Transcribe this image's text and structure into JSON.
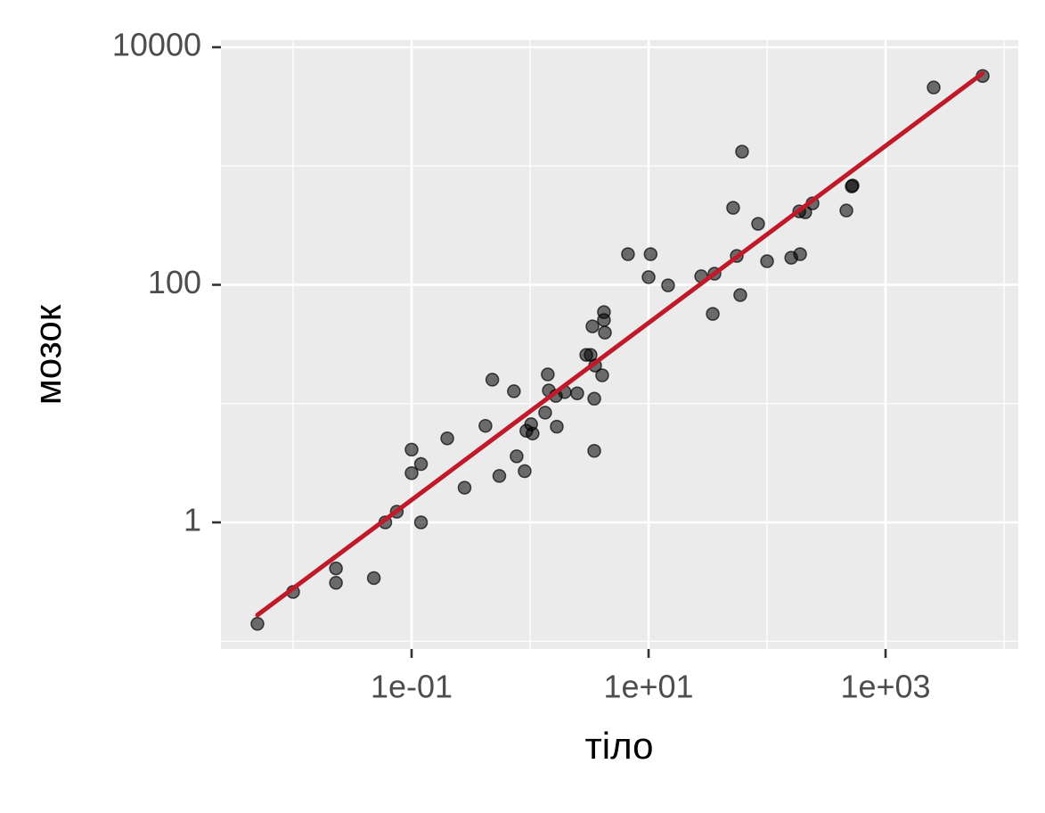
{
  "chart_data": {
    "type": "scatter",
    "xlabel": "тіло",
    "ylabel": "мозок",
    "xscale": "log",
    "yscale": "log",
    "grid": true,
    "xlim": [
      0.00246,
      13183
    ],
    "ylim": [
      0.086,
      11480
    ],
    "xticks": [
      {
        "value": 0.1,
        "label": "1e-01"
      },
      {
        "value": 10,
        "label": "1e+01"
      },
      {
        "value": 1000,
        "label": "1e+03"
      }
    ],
    "yticks": [
      1,
      100,
      10000
    ],
    "x_minor_breaks": [
      0.01,
      1,
      100,
      10000
    ],
    "y_minor_breaks": [
      0.1,
      10,
      1000
    ],
    "color": "#000000",
    "x": [
      0.005,
      0.01,
      0.023,
      0.023,
      0.048,
      0.06,
      0.075,
      0.1,
      0.1,
      0.12,
      0.12,
      0.2,
      0.28,
      0.42,
      0.48,
      0.55,
      0.73,
      0.77,
      0.9,
      0.93,
      1.02,
      1.05,
      1.34,
      1.41,
      1.44,
      1.65,
      1.68,
      1.96,
      2.5,
      2.98,
      3.24,
      3.36,
      3.54,
      3.48,
      3.48,
      4.06,
      4.2,
      4.2,
      4.28,
      6.7,
      10,
      10.4,
      14.6,
      27.8,
      34.8,
      36,
      51.7,
      55.5,
      59.4,
      61.5,
      84,
      100,
      160,
      190,
      187,
      210,
      242,
      467,
      518,
      527,
      2547,
      6600
    ],
    "y": [
      0.14,
      0.26,
      0.41,
      0.31,
      0.34,
      1.0,
      1.23,
      4.1,
      2.6,
      3.1,
      1.0,
      5.1,
      1.96,
      6.5,
      15.9,
      2.46,
      12.7,
      3.6,
      2.7,
      5.9,
      6.7,
      5.6,
      8.4,
      17.6,
      12.9,
      11.6,
      6.4,
      12.5,
      12.2,
      25.7,
      25.7,
      44.7,
      20.9,
      11.0,
      4.0,
      17.3,
      58.9,
      50.5,
      39.6,
      181,
      116,
      181,
      99,
      118,
      56.9,
      124,
      445,
      175,
      82,
      1321,
      326,
      158,
      169,
      181,
      415,
      408,
      485,
      422,
      673,
      685,
      4580,
      5730
    ],
    "fit_line": {
      "color": "#c0192a",
      "x": [
        0.005,
        6600
      ],
      "y": [
        0.166,
        6030
      ]
    }
  }
}
